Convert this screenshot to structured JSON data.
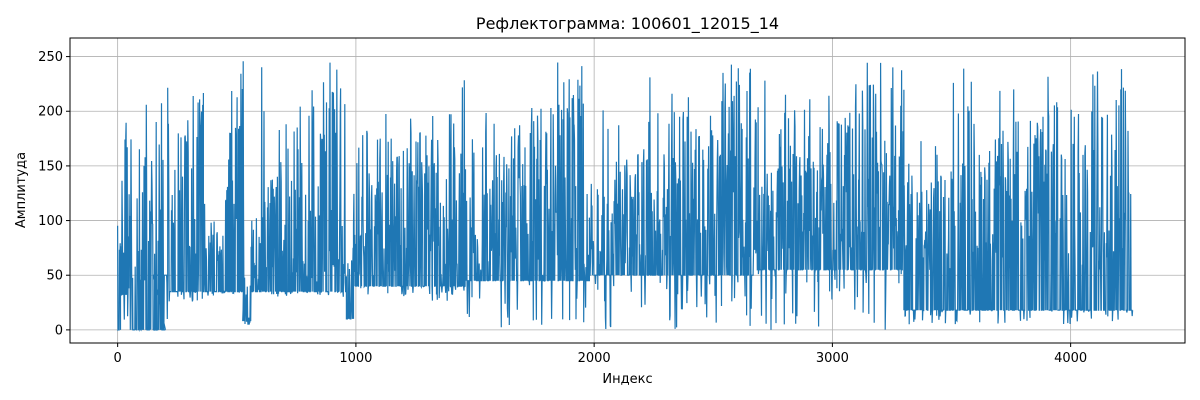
{
  "chart_data": {
    "type": "line",
    "title": "Рефлектограмма: 100601_12015_14",
    "xlabel": "Индекс",
    "ylabel": "Амплитуда",
    "xlim": [
      -200,
      4480
    ],
    "ylim": [
      -12,
      267
    ],
    "grid": true,
    "xticks": [
      0,
      1000,
      2000,
      3000,
      4000
    ],
    "yticks": [
      0,
      50,
      100,
      150,
      200,
      250
    ],
    "series": [
      {
        "color": "#1f77b4",
        "segments": [
          {
            "x_start": 0,
            "x_end": 12,
            "baseline": 0,
            "peak_range": [
              60,
              117
            ],
            "dip_to": 0
          },
          {
            "x_start": 12,
            "x_end": 45,
            "baseline": 32,
            "peak_range": [
              40,
              242
            ],
            "dip_to": 0
          },
          {
            "x_start": 45,
            "x_end": 200,
            "baseline": 0,
            "peak_range": [
              30,
              245
            ],
            "dip_to": 0
          },
          {
            "x_start": 150,
            "x_end": 210,
            "baseline": 50,
            "peak_range": [
              50,
              50
            ],
            "dip_to": 0
          },
          {
            "x_start": 210,
            "x_end": 360,
            "baseline": 35,
            "peak_range": [
              60,
              250
            ],
            "dip_to": 25
          },
          {
            "x_start": 360,
            "x_end": 450,
            "baseline": 35,
            "peak_range": [
              40,
              150
            ],
            "dip_to": 30
          },
          {
            "x_start": 450,
            "x_end": 530,
            "baseline": 35,
            "peak_range": [
              100,
              255
            ],
            "dip_to": 30
          },
          {
            "x_start": 525,
            "x_end": 560,
            "baseline": 8,
            "peak_range": [
              10,
              60
            ],
            "dip_to": 3
          },
          {
            "x_start": 560,
            "x_end": 960,
            "baseline": 35,
            "peak_range": [
              35,
              255
            ],
            "dip_to": 30
          },
          {
            "x_start": 960,
            "x_end": 990,
            "baseline": 10,
            "peak_range": [
              20,
              80
            ],
            "dip_to": 0
          },
          {
            "x_start": 990,
            "x_end": 1460,
            "baseline": 40,
            "peak_range": [
              50,
              235
            ],
            "dip_to": 25
          },
          {
            "x_start": 1460,
            "x_end": 1980,
            "baseline": 45,
            "peak_range": [
              50,
              255
            ],
            "dip_to": 0
          },
          {
            "x_start": 1980,
            "x_end": 2680,
            "baseline": 50,
            "peak_range": [
              60,
              255
            ],
            "dip_to": 0
          },
          {
            "x_start": 2680,
            "x_end": 3300,
            "baseline": 55,
            "peak_range": [
              70,
              255
            ],
            "dip_to": 0
          },
          {
            "x_start": 3300,
            "x_end": 4260,
            "baseline": 18,
            "peak_range": [
              50,
              253
            ],
            "dip_to": 5
          }
        ]
      }
    ]
  }
}
